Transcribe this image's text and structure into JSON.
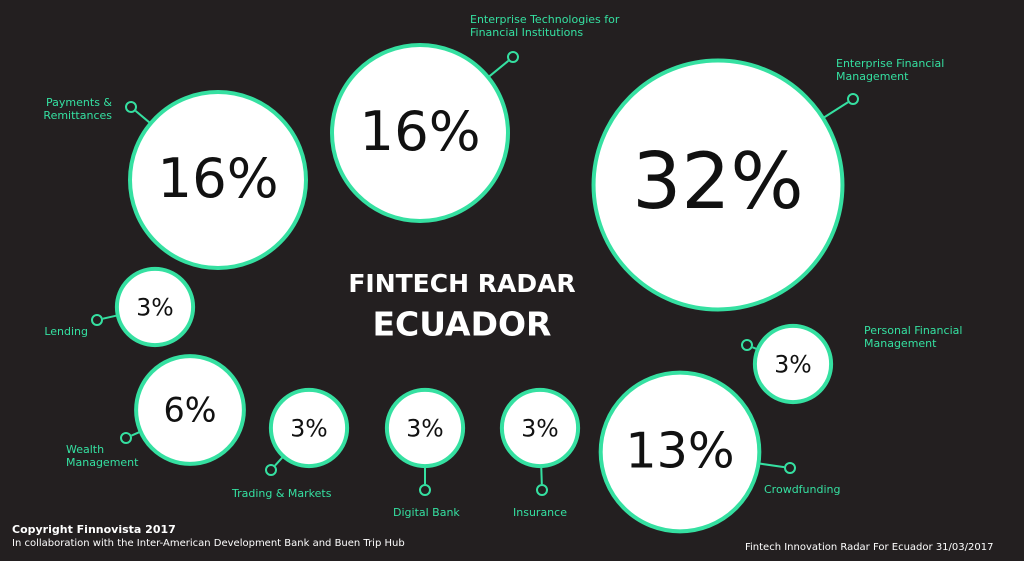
{
  "chart_data": {
    "type": "bubble",
    "title": "FINTECH RADAR",
    "subtitle": "ECUADOR",
    "color": "#35e0a1",
    "categories": [
      "Payments & Remittances",
      "Enterprise Technologies for Financial Institutions",
      "Enterprise Financial Management",
      "Lending",
      "Wealth Management",
      "Trading & Markets",
      "Digital Bank",
      "Insurance",
      "Crowdfunding",
      "Personal Financial Management"
    ],
    "values": [
      16,
      16,
      32,
      3,
      6,
      3,
      3,
      3,
      13,
      3
    ],
    "value_labels": [
      "16%",
      "16%",
      "32%",
      "3%",
      "6%",
      "3%",
      "3%",
      "3%",
      "13%",
      "3%"
    ]
  },
  "footer": {
    "copyright": "Copyright Finnovista 2017",
    "collaboration": "In collaboration with the Inter-American Development Bank and Buen Trip Hub",
    "source": "Fintech Innovation Radar For Ecuador 31/03/2017"
  }
}
